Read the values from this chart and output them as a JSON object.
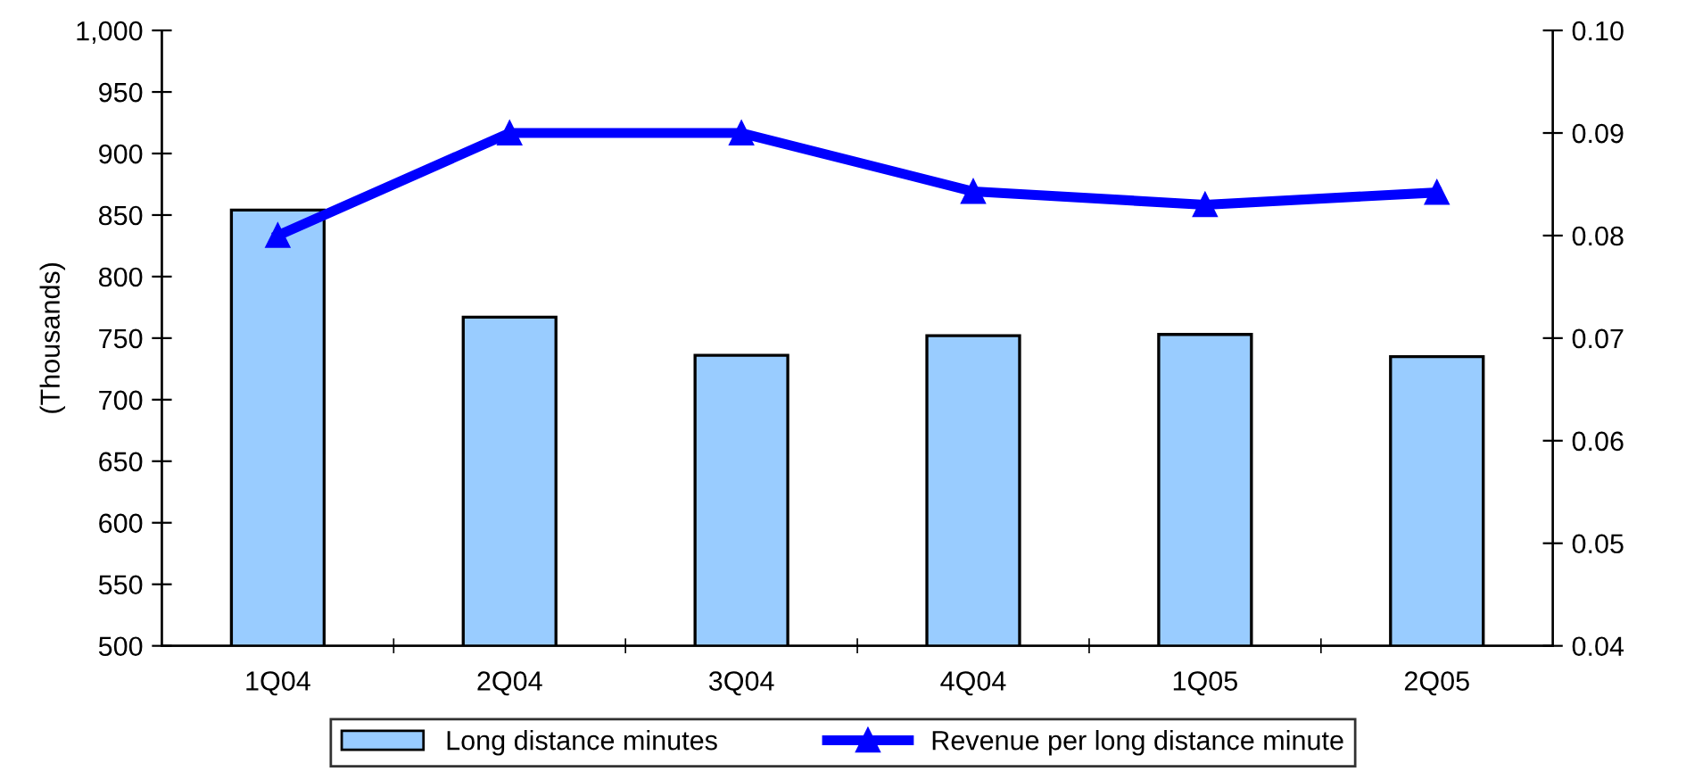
{
  "chart_data": {
    "type": "bar",
    "ylabel": "(Thousands)",
    "categories": [
      "1Q04",
      "2Q04",
      "3Q04",
      "4Q04",
      "1Q05",
      "2Q05"
    ],
    "series": [
      {
        "name": "Long distance minutes",
        "color": "#99ccff",
        "values": [
          854,
          767,
          736,
          752,
          753,
          735
        ]
      },
      {
        "name": "Revenue per long distance minute",
        "type": "line",
        "axis": "y2",
        "color": "#0000ff",
        "marker": "triangle",
        "values": [
          0.08,
          0.09,
          0.09,
          0.0843,
          0.083,
          0.0842
        ]
      }
    ],
    "ylim": [
      500,
      1000
    ],
    "yticks": [
      {
        "value": 500,
        "label": "500"
      },
      {
        "value": 550,
        "label": "550"
      },
      {
        "value": 600,
        "label": "600"
      },
      {
        "value": 650,
        "label": "650"
      },
      {
        "value": 700,
        "label": "700"
      },
      {
        "value": 750,
        "label": "750"
      },
      {
        "value": 800,
        "label": "800"
      },
      {
        "value": 850,
        "label": "850"
      },
      {
        "value": 900,
        "label": "900"
      },
      {
        "value": 950,
        "label": "950"
      },
      {
        "value": 1000,
        "label": "1,000"
      }
    ],
    "y2lim": [
      0.04,
      0.1
    ],
    "y2ticks": [
      {
        "value": 0.04,
        "label": "0.04"
      },
      {
        "value": 0.05,
        "label": "0.05"
      },
      {
        "value": 0.06,
        "label": "0.06"
      },
      {
        "value": 0.07,
        "label": "0.07"
      },
      {
        "value": 0.08,
        "label": "0.08"
      },
      {
        "value": 0.09,
        "label": "0.09"
      },
      {
        "value": 0.1,
        "label": "0.10"
      }
    ],
    "legend": "bottom",
    "grid": false
  }
}
